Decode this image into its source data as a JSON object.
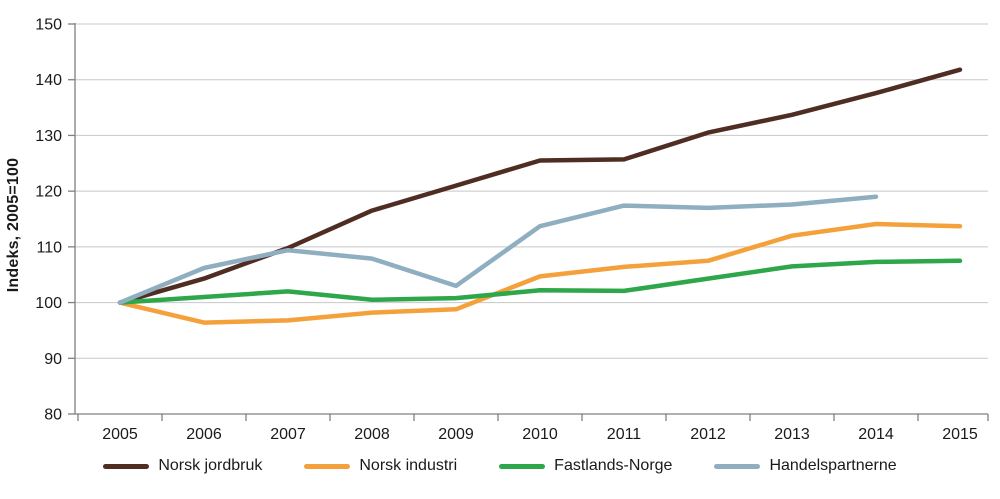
{
  "chart_data": {
    "type": "line",
    "title": "",
    "xlabel": "",
    "ylabel": "Indeks, 2005=100",
    "x": [
      2005,
      2006,
      2007,
      2008,
      2009,
      2010,
      2011,
      2012,
      2013,
      2014,
      2015
    ],
    "series": [
      {
        "name": "Norsk jordbruk",
        "color": "#4F2D23",
        "values": [
          100,
          104.3,
          109.8,
          116.5,
          121.0,
          125.5,
          125.7,
          130.5,
          133.7,
          137.6,
          141.8
        ]
      },
      {
        "name": "Norsk industri",
        "color": "#F4A13C",
        "values": [
          100,
          96.4,
          96.8,
          98.2,
          98.8,
          104.7,
          106.4,
          107.5,
          112.0,
          114.1,
          113.7
        ]
      },
      {
        "name": "Fastlands-Norge",
        "color": "#2EA64A",
        "values": [
          100,
          101.0,
          102.0,
          100.5,
          100.8,
          102.2,
          102.1,
          104.3,
          106.5,
          107.3,
          107.5
        ]
      },
      {
        "name": "Handelspartnerne",
        "color": "#8FAEC0",
        "values": [
          100,
          106.2,
          109.4,
          107.9,
          103.0,
          113.7,
          117.4,
          117.0,
          117.6,
          119.0,
          null
        ]
      }
    ],
    "ylim": [
      80,
      150
    ],
    "ytick_step": 10,
    "grid": true,
    "legend_position": "bottom",
    "grid_color": "#C8C8C8",
    "axis_color": "#808080",
    "text_color": "#1A1A1A",
    "background": "#FFFFFF",
    "line_width": 4.5
  }
}
